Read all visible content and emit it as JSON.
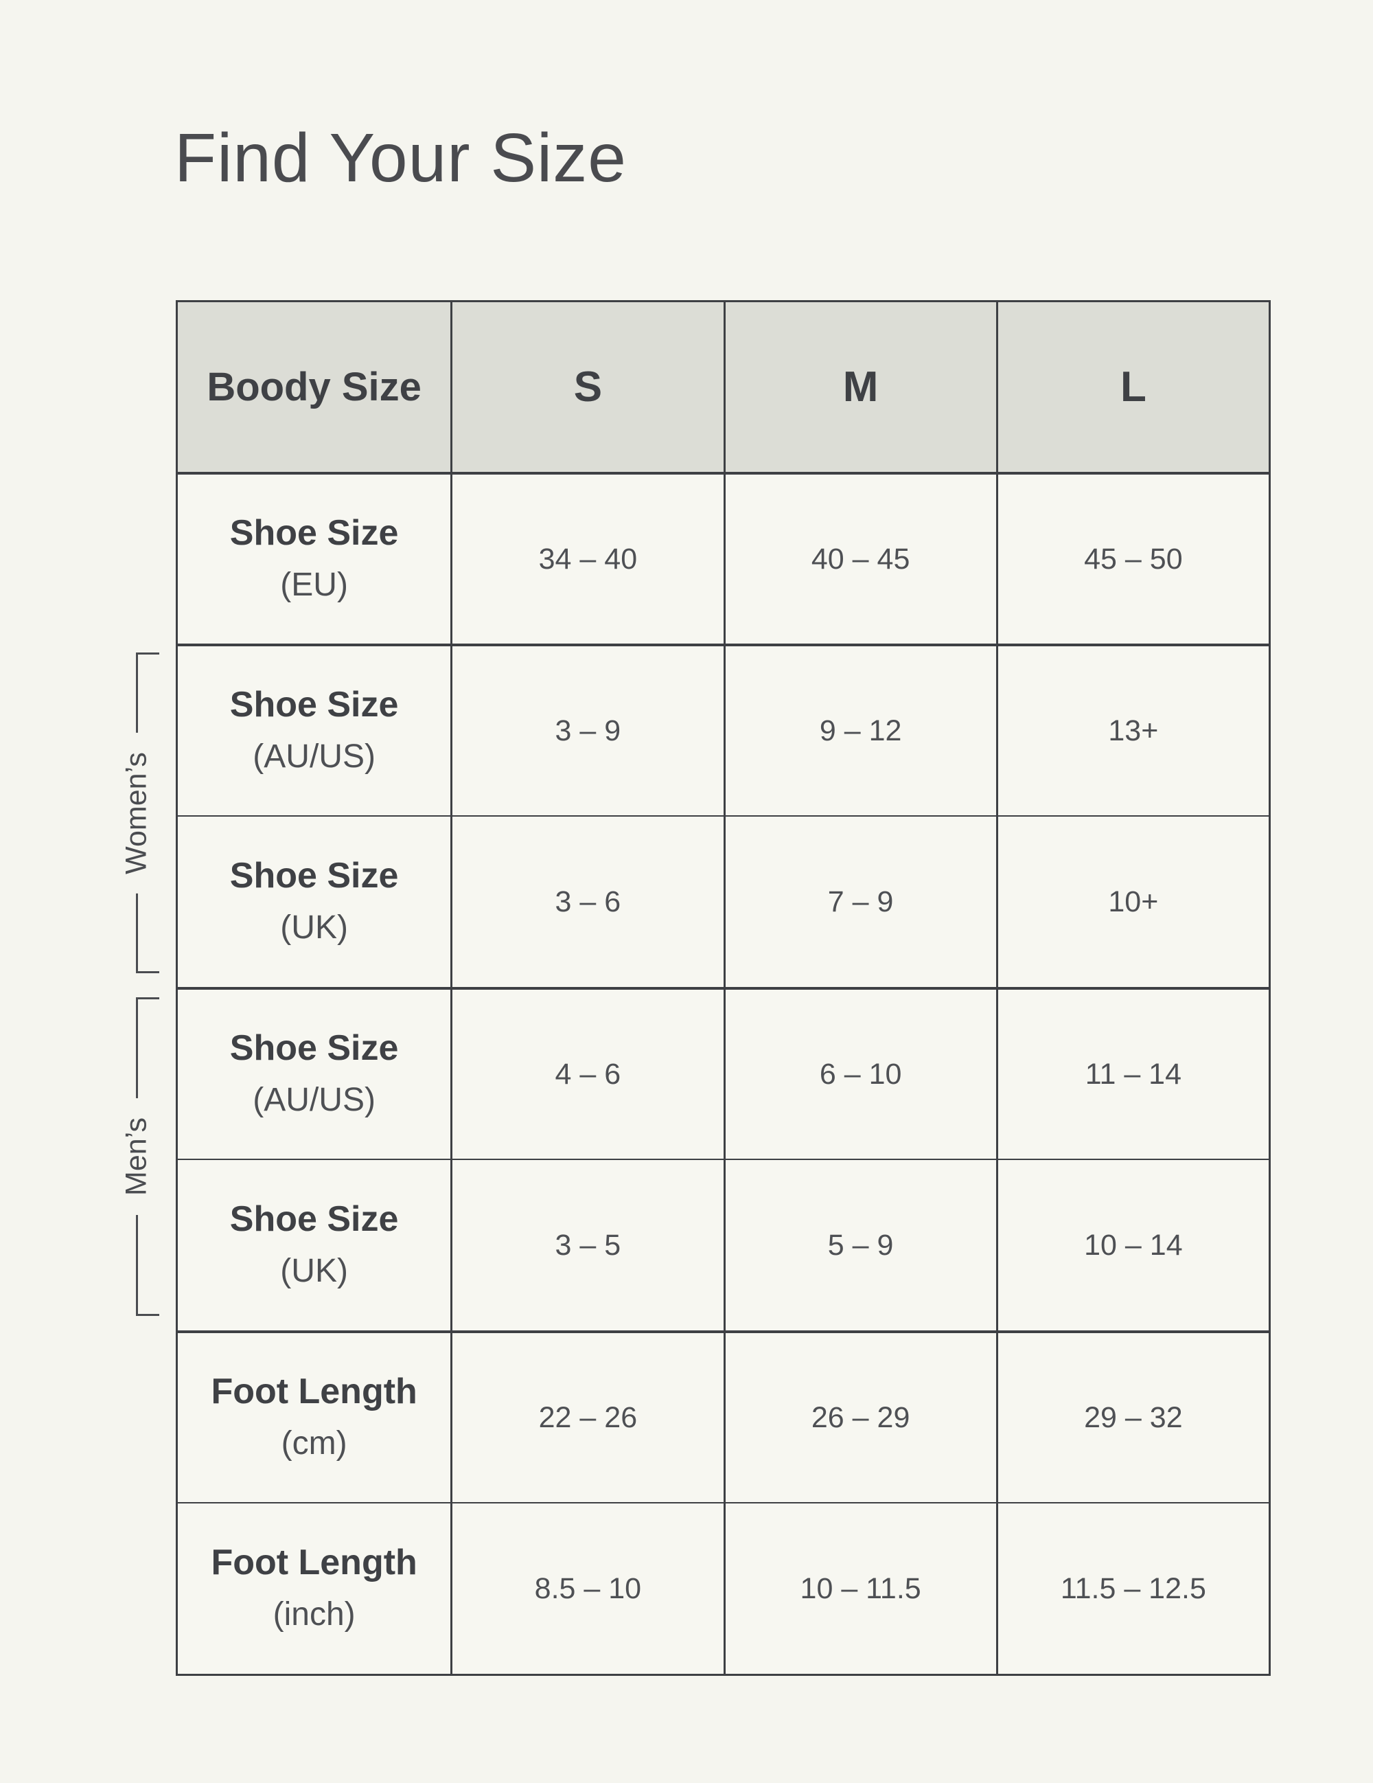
{
  "page_title": "Find Your Size",
  "colors": {
    "page_bg": "#f5f5ef",
    "cell_bg": "#f7f7f1",
    "header_bg": "#dcddd6",
    "border": "#3e4044",
    "title_text": "#4a4b4f",
    "label_text": "#3f4145",
    "value_text": "#4e5054"
  },
  "brackets": {
    "womens": "Women’s",
    "mens": "Men’s"
  },
  "chart_data": {
    "type": "table",
    "title": "Find Your Size",
    "columns": [
      "Boody Size",
      "S",
      "M",
      "L"
    ],
    "group_labels": [
      "Women’s",
      "Men’s"
    ],
    "rows": [
      {
        "label": "Shoe Size",
        "unit": "(EU)",
        "group": "",
        "values": [
          "34 – 40",
          "40 – 45",
          "45 – 50"
        ]
      },
      {
        "label": "Shoe Size",
        "unit": "(AU/US)",
        "group": "Women’s",
        "values": [
          "3 – 9",
          "9 – 12",
          "13+"
        ]
      },
      {
        "label": "Shoe Size",
        "unit": "(UK)",
        "group": "Women’s",
        "values": [
          "3 – 6",
          "7 – 9",
          "10+"
        ]
      },
      {
        "label": "Shoe Size",
        "unit": "(AU/US)",
        "group": "Men’s",
        "values": [
          "4 – 6",
          "6 – 10",
          "11 – 14"
        ]
      },
      {
        "label": "Shoe Size",
        "unit": "(UK)",
        "group": "Men’s",
        "values": [
          "3 – 5",
          "5 – 9",
          "10 – 14"
        ]
      },
      {
        "label": "Foot Length",
        "unit": "(cm)",
        "group": "",
        "values": [
          "22 – 26",
          "26 – 29",
          "29 – 32"
        ]
      },
      {
        "label": "Foot Length",
        "unit": "(inch)",
        "group": "",
        "values": [
          "8.5 – 10",
          "10 – 11.5",
          "11.5 – 12.5"
        ]
      }
    ]
  }
}
